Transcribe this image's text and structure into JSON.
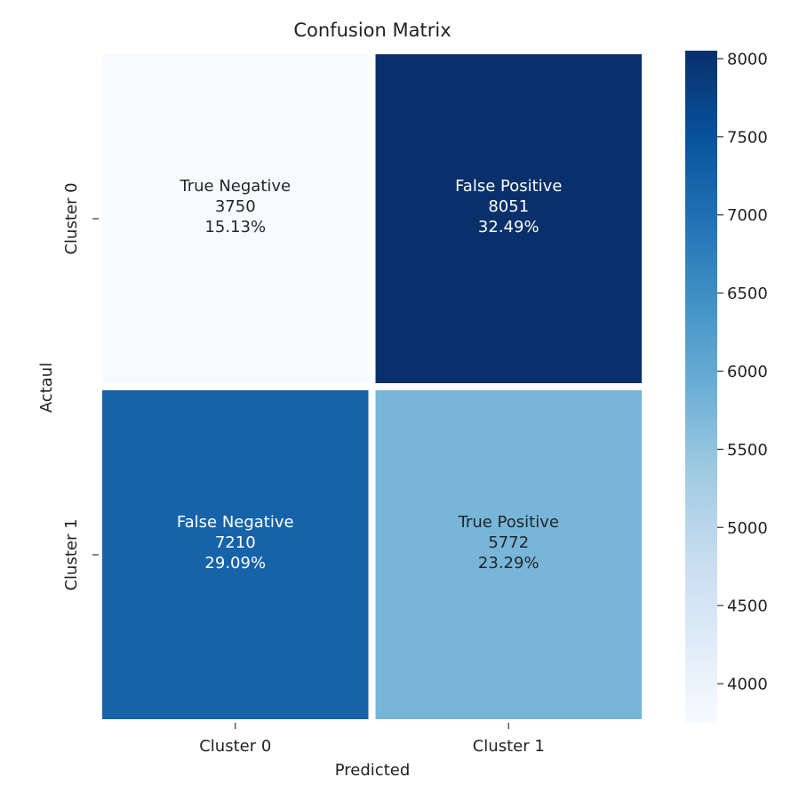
{
  "chart_data": {
    "type": "heatmap",
    "title": "Confusion Matrix",
    "xlabel": "Predicted",
    "ylabel": "Actaul",
    "x_categories": [
      "Cluster 0",
      "Cluster 1"
    ],
    "y_categories": [
      "Cluster 0",
      "Cluster 1"
    ],
    "cells": [
      [
        {
          "label": "True Negative",
          "value": 3750,
          "percent": "15.13%"
        },
        {
          "label": "False Positive",
          "value": 8051,
          "percent": "32.49%"
        }
      ],
      [
        {
          "label": "False Negative",
          "value": 7210,
          "percent": "29.09%"
        },
        {
          "label": "True Positive",
          "value": 5772,
          "percent": "23.29%"
        }
      ]
    ],
    "colormap": "Blues",
    "colorbar": {
      "range": [
        3750,
        8051
      ],
      "ticks": [
        "4000",
        "4500",
        "5000",
        "5500",
        "6000",
        "6500",
        "7000",
        "7500",
        "8000"
      ]
    },
    "grid": false
  }
}
